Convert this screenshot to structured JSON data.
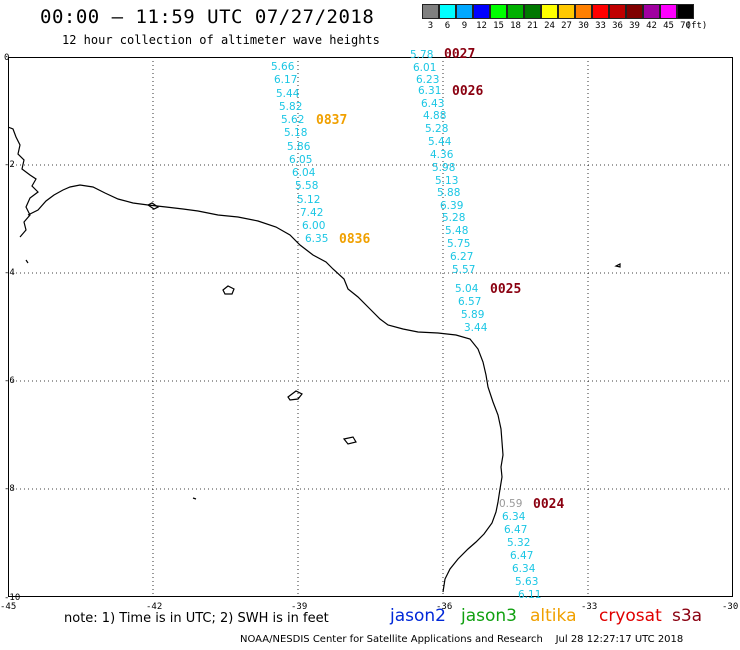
{
  "header": {
    "title": "00:00 – 11:59 UTC 07/27/2018",
    "subtitle": "12 hour collection of altimeter wave heights"
  },
  "scale": {
    "unit": "(ft)",
    "items": [
      {
        "label": "3",
        "color": "#808080"
      },
      {
        "label": "6",
        "color": "#00ffff"
      },
      {
        "label": "9",
        "color": "#00a8ff"
      },
      {
        "label": "12",
        "color": "#0000ff"
      },
      {
        "label": "15",
        "color": "#00ff00"
      },
      {
        "label": "18",
        "color": "#00b000"
      },
      {
        "label": "21",
        "color": "#007800"
      },
      {
        "label": "24",
        "color": "#ffff00"
      },
      {
        "label": "27",
        "color": "#ffc800"
      },
      {
        "label": "30",
        "color": "#ff7f00"
      },
      {
        "label": "33",
        "color": "#ff0000"
      },
      {
        "label": "36",
        "color": "#c00000"
      },
      {
        "label": "39",
        "color": "#800000"
      },
      {
        "label": "42",
        "color": "#a000a0"
      },
      {
        "label": "45",
        "color": "#ff00ff"
      },
      {
        "label": "70",
        "color": "#000000"
      }
    ]
  },
  "axes": {
    "y": [
      "0",
      "-2",
      "-4",
      "-6",
      "-8",
      "-10"
    ],
    "x": [
      "-45",
      "-42",
      "-39",
      "-36",
      "-33",
      "-30"
    ]
  },
  "tracks": [
    {
      "time": "0837",
      "time_color": "orange",
      "values": [
        "5.66",
        "6.17",
        "5.44",
        "5.82",
        "5.62",
        "5.18",
        "5.86",
        "6.05",
        "6.04",
        "5.58",
        "5.12",
        "7.42",
        "6.00",
        "6.35"
      ],
      "end_time": "0836"
    },
    {
      "time": "0027",
      "time_color": "red",
      "values": [
        "5.78",
        "6.01",
        "6.23",
        "6.31",
        "6.43",
        "4.88",
        "5.28",
        "5.44",
        "4.36",
        "5.98",
        "5.13",
        "5.88",
        "6.39",
        "5.28",
        "5.48",
        "5.75",
        "6.27",
        "5.57"
      ]
    },
    {
      "time": "0026",
      "time_color": "red"
    },
    {
      "time": "0025",
      "time_color": "red",
      "values": [
        "5.04",
        "6.57",
        "5.89",
        "3.44"
      ]
    },
    {
      "time": "0024",
      "time_color": "red",
      "first_value": "0.59",
      "values": [
        "6.34",
        "6.47",
        "5.32",
        "6.47",
        "6.34",
        "5.63",
        "6.11"
      ]
    }
  ],
  "footer_note": "note:  1) Time is in UTC;  2) SWH is in feet",
  "satellites": [
    {
      "name": "jason2",
      "color": "#0028d8"
    },
    {
      "name": "jason3",
      "color": "#10a010"
    },
    {
      "name": "altika",
      "color": "#f0a000"
    },
    {
      "name": "cryosat",
      "color": "#e00000"
    },
    {
      "name": "s3a",
      "color": "#8a0010"
    }
  ],
  "credit": "NOAA/NESDIS Center for Satellite Applications and Research",
  "generated": "Jul 28 12:27:17 UTC 2018"
}
